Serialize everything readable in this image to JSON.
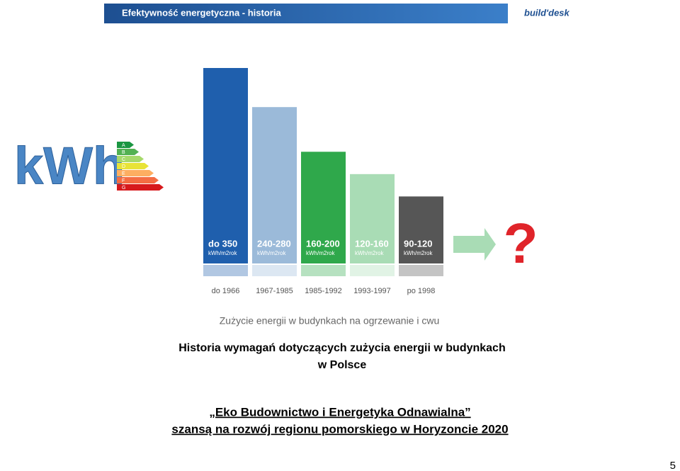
{
  "header": {
    "title": "Efektywność energetyczna - historia",
    "logo": "build'desk"
  },
  "badge": {
    "text": "kWh",
    "classes": [
      "A",
      "B",
      "C",
      "D",
      "E",
      "F",
      "G"
    ]
  },
  "chart_data": {
    "type": "bar",
    "categories": [
      "do 1966",
      "1967-1985",
      "1985-1992",
      "1993-1997",
      "po 1998"
    ],
    "values": [
      350,
      280,
      200,
      160,
      120
    ],
    "value_labels": [
      "do 350",
      "240-280",
      "160-200",
      "120-160",
      "90-120"
    ],
    "unit": "kWh/m2rok",
    "colors": [
      "#1f5fad",
      "#9bbad9",
      "#2fa84b",
      "#a9dcb5",
      "#565656"
    ],
    "future_label": "?",
    "caption": "Zużycie energii w budynkach na ogrzewanie i cwu"
  },
  "text": {
    "heading": [
      "Historia wymagań dotyczących zużycia energii w budynkach",
      "w Polsce"
    ],
    "subheading": [
      "„Eko Budownictwo i Energetyka Odnawialna”",
      "szansą na rozwój regionu pomorskiego w Horyzoncie 2020"
    ]
  },
  "page_number": "5"
}
